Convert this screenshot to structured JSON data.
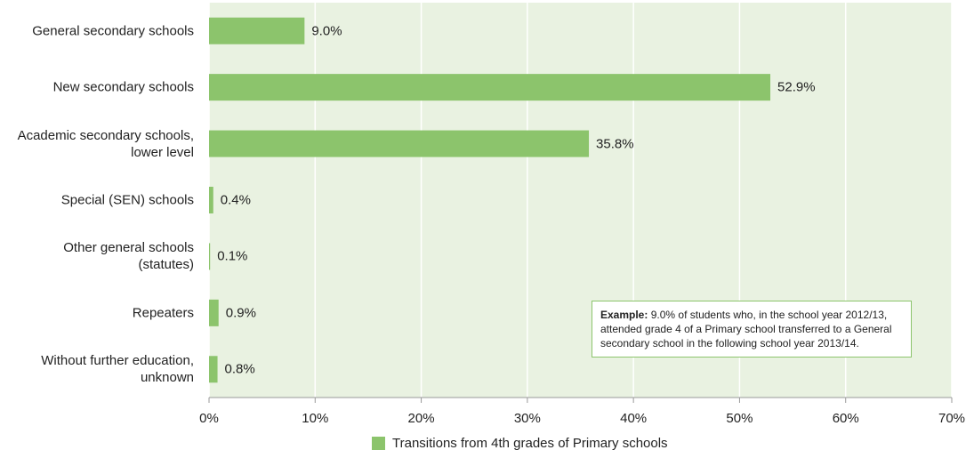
{
  "chart_data": {
    "type": "bar",
    "orientation": "horizontal",
    "categories": [
      "General secondary schools",
      "New secondary schools",
      "Academic secondary schools,\nlower level ",
      "Special (SEN) schools",
      "Other general schools\n(statutes)",
      "Repeaters ",
      "Without further education,\nunknown "
    ],
    "series": [
      {
        "name": "Transitions from 4th grades of Primary schools",
        "color": "#8cc46c",
        "values": [
          9.0,
          52.9,
          35.8,
          0.4,
          0.1,
          0.9,
          0.8
        ],
        "value_labels": [
          "9.0%",
          "52.9%",
          "35.8%",
          "0.4%",
          "0.1%",
          "0.9%",
          "0.8%"
        ]
      }
    ],
    "xlim": [
      0,
      70
    ],
    "xticks": [
      {
        "value": 0,
        "label": "0%"
      },
      {
        "value": 10,
        "label": "10%"
      },
      {
        "value": 20,
        "label": "20%"
      },
      {
        "value": 30,
        "label": "30%"
      },
      {
        "value": 40,
        "label": "40%"
      },
      {
        "value": 50,
        "label": "50%"
      },
      {
        "value": 60,
        "label": "60%"
      },
      {
        "value": 70,
        "label": "70%"
      }
    ],
    "grid": true,
    "background": "#e9f2e1",
    "annotation": {
      "label": "Example:",
      "text": "9.0% of students who, in the school year 2012/13, attended grade 4 of a Primary school transferred to a General secondary school in the following school year 2013/14."
    }
  }
}
